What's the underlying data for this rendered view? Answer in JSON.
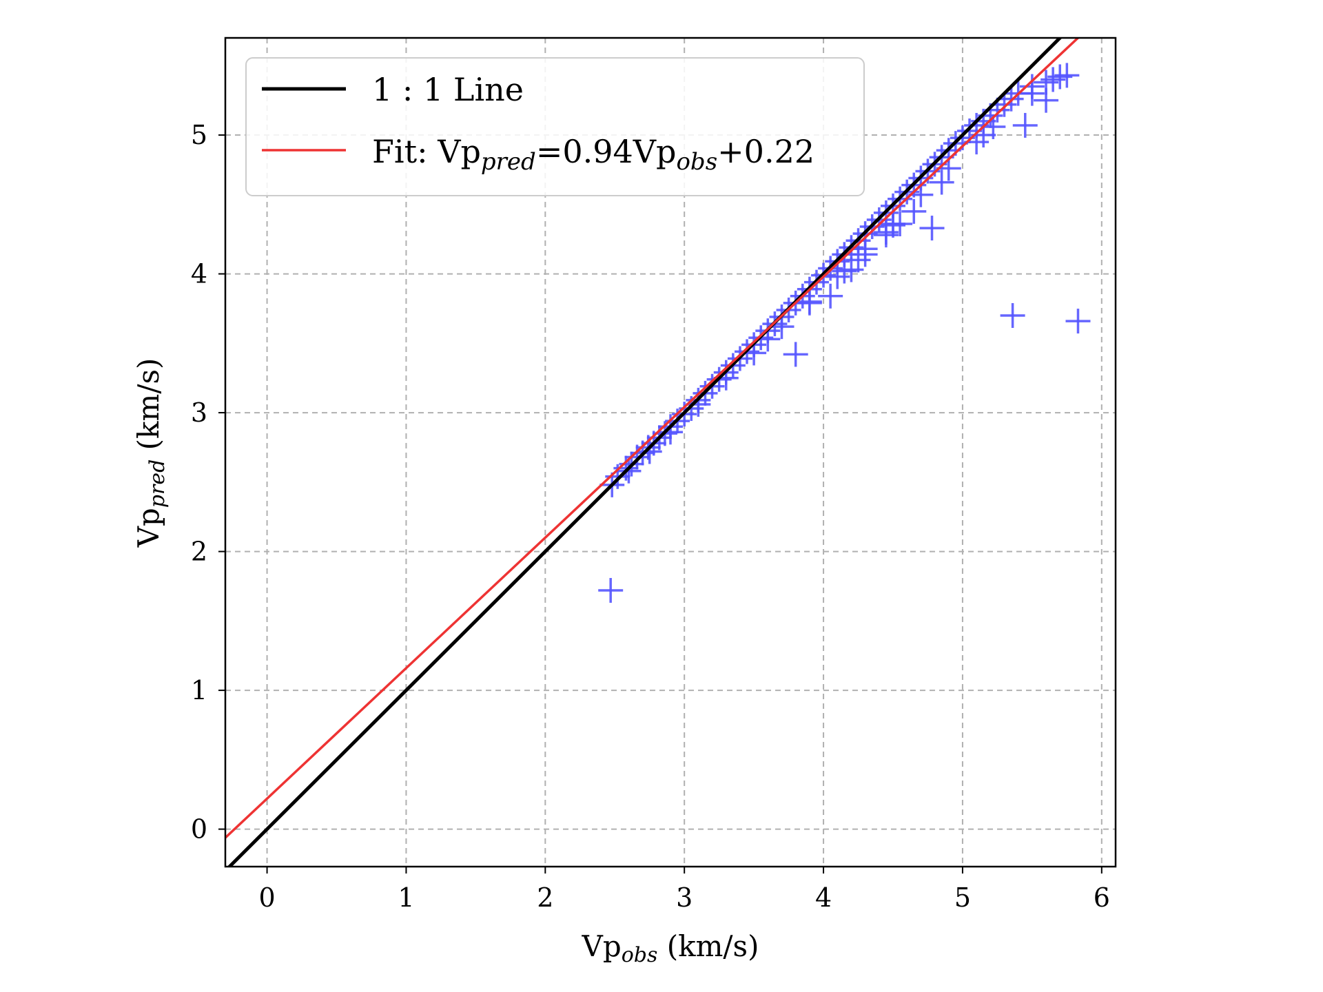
{
  "chart_data": {
    "type": "scatter",
    "xlabel": {
      "base": "Vp",
      "sub": "obs",
      "unit": " (km/s)"
    },
    "ylabel": {
      "base": "Vp",
      "sub": "pred",
      "unit": " (km/s)"
    },
    "xlim": [
      -0.3,
      6.1
    ],
    "ylim": [
      -0.27,
      5.7
    ],
    "x_ticks": [
      0,
      1,
      2,
      3,
      4,
      5,
      6
    ],
    "y_ticks": [
      0,
      1,
      2,
      3,
      4,
      5
    ],
    "grid": true,
    "legend_position": "top-left",
    "legend": [
      {
        "kind": "line",
        "color": "#000000",
        "text": "1 : 1 Line"
      },
      {
        "kind": "line",
        "color": "#ee3333",
        "prefix": "Fit: Vp",
        "sub1": "pred",
        "mid": "=0.94Vp",
        "sub2": "obs",
        "suffix": "+0.22"
      }
    ],
    "series": [
      {
        "name": "1 : 1 Line",
        "kind": "line",
        "color": "#000000",
        "slope": 1.0,
        "intercept": 0.0
      },
      {
        "name": "Fit",
        "kind": "line",
        "color": "#ee3333",
        "slope": 0.94,
        "intercept": 0.22
      },
      {
        "kind": "scatter",
        "marker": "+",
        "color": "#5555ff",
        "x": [
          2.48,
          2.52,
          2.58,
          2.62,
          2.66,
          2.7,
          2.74,
          2.78,
          2.82,
          2.86,
          2.9,
          2.95,
          3.0,
          3.05,
          3.1,
          3.15,
          3.2,
          3.25,
          3.3,
          3.35,
          3.4,
          3.45,
          3.5,
          3.55,
          3.6,
          3.65,
          3.7,
          3.75,
          3.8,
          3.85,
          3.9,
          3.95,
          4.0,
          4.05,
          4.1,
          4.15,
          4.2,
          4.25,
          4.3,
          4.35,
          4.4,
          4.45,
          4.5,
          4.55,
          4.6,
          4.65,
          4.7,
          4.75,
          4.8,
          4.85,
          4.9,
          4.95,
          5.0,
          5.05,
          5.1,
          5.15,
          5.2,
          5.25,
          5.3,
          5.35,
          5.4,
          5.5,
          5.6,
          5.65,
          5.7,
          5.75,
          2.6,
          2.75,
          2.9,
          3.1,
          3.3,
          3.5,
          3.7,
          3.9,
          4.1,
          4.3,
          4.5,
          4.7,
          4.9,
          5.1,
          3.6,
          3.9,
          4.15,
          4.3,
          4.45,
          4.55,
          4.65,
          4.85,
          5.15,
          2.47,
          3.8,
          4.05,
          4.2,
          4.25,
          4.45,
          4.5,
          4.78,
          5.22,
          5.45,
          5.36,
          5.83,
          5.5,
          5.6
        ],
        "y": [
          2.48,
          2.54,
          2.6,
          2.63,
          2.68,
          2.71,
          2.75,
          2.78,
          2.82,
          2.85,
          2.9,
          2.94,
          2.99,
          3.03,
          3.09,
          3.14,
          3.19,
          3.24,
          3.29,
          3.34,
          3.39,
          3.44,
          3.49,
          3.54,
          3.59,
          3.64,
          3.69,
          3.74,
          3.79,
          3.84,
          3.89,
          3.94,
          3.99,
          4.04,
          4.09,
          4.14,
          4.19,
          4.24,
          4.29,
          4.34,
          4.39,
          4.44,
          4.49,
          4.54,
          4.59,
          4.64,
          4.69,
          4.74,
          4.79,
          4.84,
          4.89,
          4.94,
          4.98,
          5.03,
          5.07,
          5.1,
          5.14,
          5.18,
          5.22,
          5.26,
          5.3,
          5.35,
          5.38,
          5.4,
          5.42,
          5.43,
          2.58,
          2.72,
          2.86,
          3.06,
          3.25,
          3.43,
          3.62,
          3.8,
          3.98,
          4.18,
          4.36,
          4.57,
          4.76,
          4.95,
          3.53,
          3.79,
          4.02,
          4.14,
          4.28,
          4.36,
          4.45,
          4.66,
          5.0,
          1.72,
          3.42,
          3.84,
          4.03,
          4.1,
          4.3,
          4.35,
          4.33,
          5.06,
          5.07,
          3.7,
          3.66,
          5.3,
          5.25
        ]
      }
    ]
  }
}
